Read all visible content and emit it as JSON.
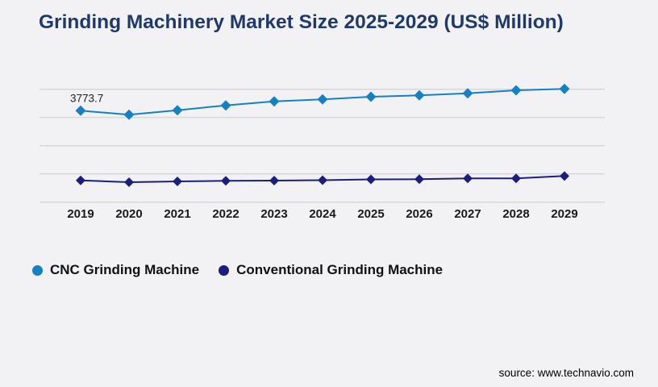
{
  "page": {
    "title": "Grinding Machinery Market Size 2025-2029 (US$ Million)",
    "source": "source: www.technavio.com",
    "background_color": "#f2f2f4",
    "title_color": "#1f3a68"
  },
  "chart_data": {
    "type": "line",
    "title": "Grinding Machinery Market Size 2025-2029 (US$ Million)",
    "x": [
      "2019",
      "2020",
      "2021",
      "2022",
      "2023",
      "2024",
      "2025",
      "2026",
      "2027",
      "2028",
      "2029"
    ],
    "series": [
      {
        "name": "CNC Grinding Machine",
        "color": "#1680c5",
        "marker": "diamond",
        "values": [
          3773.7,
          3631,
          3791,
          3962,
          4105,
          4174,
          4268,
          4317,
          4391,
          4497,
          4545
        ]
      },
      {
        "name": "Conventional Grinding Machine",
        "color": "#1d1d80",
        "marker": "diamond",
        "values": [
          1305,
          1240,
          1268,
          1288,
          1297,
          1311,
          1340,
          1345,
          1374,
          1374,
          1459
        ]
      }
    ],
    "xlabel": "",
    "ylabel": "",
    "ylim": [
      533.7,
      4533.7
    ],
    "grid": true,
    "gridline_count": 5,
    "gridline_color": "#c9c9ce",
    "axis_tick_color": "#1a1a1a",
    "y_axis_labels_visible": false,
    "legend_position": "bottom-left",
    "annotations": [
      {
        "series": 0,
        "index": 0,
        "text": "3773.7"
      }
    ]
  }
}
